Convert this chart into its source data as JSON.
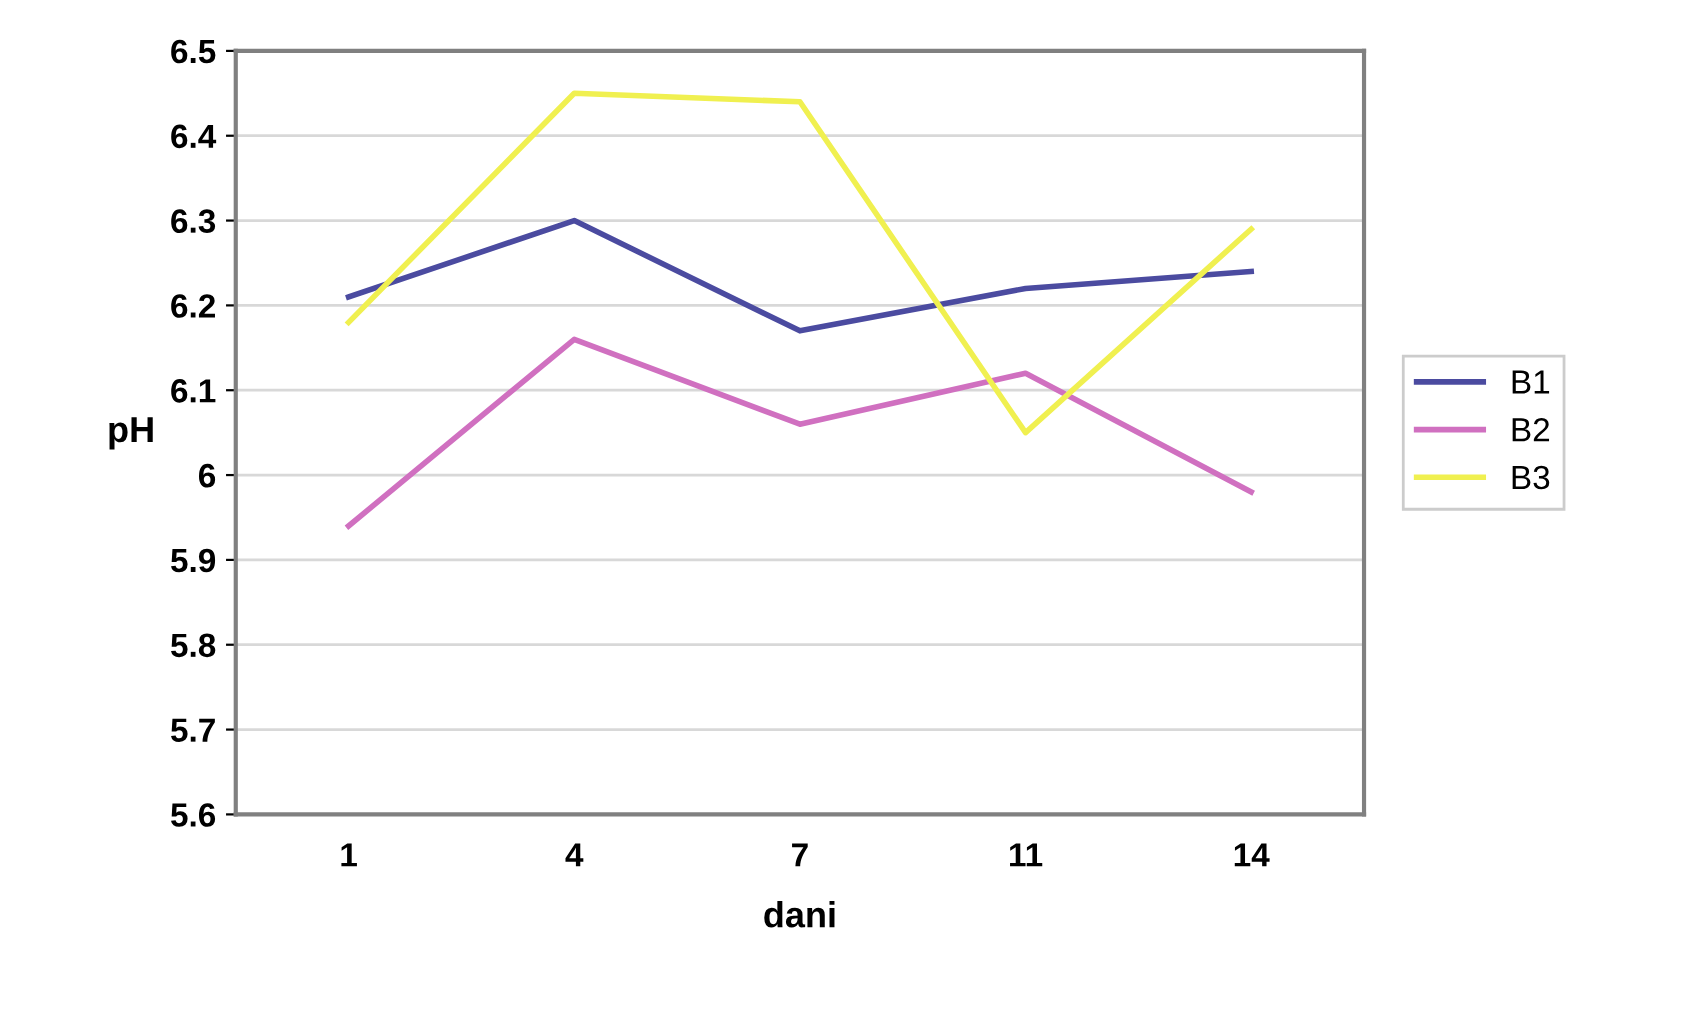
{
  "chart_data": {
    "type": "line",
    "xlabel": "dani",
    "ylabel": "pH",
    "categories": [
      "1",
      "4",
      "7",
      "11",
      "14"
    ],
    "series": [
      {
        "name": "B1",
        "color": "#4b4ba0",
        "values": [
          6.21,
          6.3,
          6.17,
          6.22,
          6.24
        ]
      },
      {
        "name": "B2",
        "color": "#d070c0",
        "values": [
          5.94,
          6.16,
          6.06,
          6.12,
          5.98
        ]
      },
      {
        "name": "B3",
        "color": "#f0f050",
        "values": [
          6.18,
          6.45,
          6.44,
          6.05,
          6.29
        ]
      }
    ],
    "ylim": [
      5.6,
      6.5
    ],
    "yticks": [
      5.6,
      5.7,
      5.8,
      5.9,
      6,
      6.1,
      6.2,
      6.3,
      6.4,
      6.5
    ],
    "grid": "y",
    "legend": "right",
    "marker": "none",
    "line_style": "solid"
  }
}
